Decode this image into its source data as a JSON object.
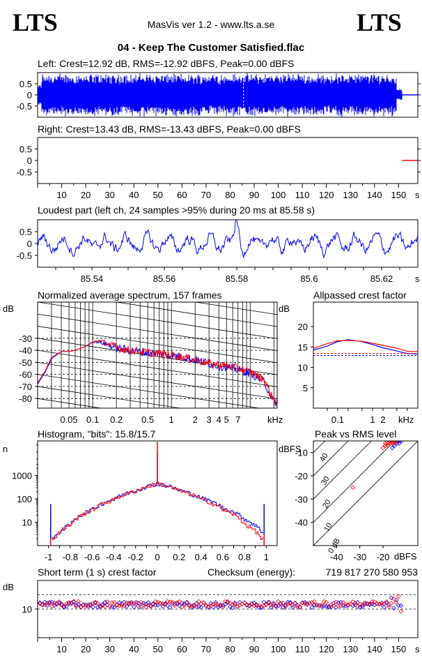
{
  "header": {
    "logo_left": "LTS",
    "logo_right": "LTS",
    "app_title": "MasVis ver 1.2 - www.lts.a.se",
    "file_title": "04 - Keep The Customer Satisfied.flac"
  },
  "colors": {
    "left": "#0000ff",
    "right": "#ff0000",
    "grid": "#000000"
  },
  "chart_data": [
    {
      "id": "left_waveform",
      "type": "area",
      "title": "Left: Crest=12.92 dB, RMS=-12.92 dBFS, Peak=0.00 dBFS",
      "ylim": [
        -1,
        1
      ],
      "yticks": [
        "0.5",
        "0",
        "-0.5"
      ],
      "xlim": [
        0,
        158
      ],
      "duration_s": 151.5,
      "loudest_marker_s": 85.58,
      "envelope_peak": 1.0
    },
    {
      "id": "right_waveform",
      "type": "area",
      "title": "Right: Crest=13.43 dB, RMS=-13.43 dBFS, Peak=0.00 dBFS",
      "ylim": [
        -1,
        1
      ],
      "yticks": [
        "0.5",
        "0",
        "-0.5"
      ],
      "xlim": [
        0,
        158
      ],
      "duration_s": 151.5,
      "xticks": [
        "10",
        "20",
        "30",
        "40",
        "50",
        "60",
        "70",
        "80",
        "90",
        "100",
        "110",
        "120",
        "130",
        "140",
        "150"
      ],
      "xunit": "s"
    },
    {
      "id": "loudest_part",
      "type": "line",
      "title": "Loudest part (left  ch, 24 samples >95% during 20 ms at 85.58 s)",
      "ylim": [
        -1,
        1
      ],
      "yticks": [
        "0.5",
        "0",
        "-0.5"
      ],
      "xlim": [
        85.525,
        85.63
      ],
      "xticks": [
        "85.54",
        "85.56",
        "85.58",
        "85.6",
        "85.62"
      ],
      "xunit": "s"
    },
    {
      "id": "spectrum",
      "type": "line",
      "title": "Normalized average spectrum, 157 frames",
      "ylabel": "dB",
      "ylim": [
        -88,
        0
      ],
      "yticks": [
        "-30",
        "-40",
        "-50",
        "-60",
        "-70",
        "-80"
      ],
      "xscale": "log",
      "xlim_khz": [
        0.02,
        22
      ],
      "xticks": [
        "0.05",
        "0.1",
        "0.2",
        "0.5",
        "1",
        "2",
        "3",
        "4",
        "5",
        "7"
      ],
      "xunit": "kHz",
      "series": [
        {
          "name": "left",
          "x_khz": [
            0.02,
            0.025,
            0.03,
            0.04,
            0.05,
            0.06,
            0.08,
            0.1,
            0.12,
            0.15,
            0.2,
            0.3,
            0.5,
            0.7,
            1,
            1.5,
            2,
            3,
            4,
            5,
            7,
            10,
            15,
            20
          ],
          "values": [
            -68,
            -58,
            -47,
            -41,
            -41,
            -40,
            -37,
            -33,
            -33,
            -35,
            -38,
            -40,
            -42,
            -43,
            -44,
            -46,
            -48,
            -51,
            -53,
            -54,
            -56,
            -59,
            -66,
            -83
          ]
        },
        {
          "name": "right",
          "x_khz": [
            0.02,
            0.025,
            0.03,
            0.04,
            0.05,
            0.06,
            0.08,
            0.1,
            0.12,
            0.15,
            0.2,
            0.3,
            0.5,
            0.7,
            1,
            1.5,
            2,
            3,
            4,
            5,
            7,
            10,
            15,
            20
          ],
          "values": [
            -67,
            -57,
            -46,
            -41,
            -41,
            -40,
            -37,
            -33,
            -32,
            -34,
            -38,
            -40,
            -42,
            -43,
            -44,
            -46,
            -48,
            -51,
            -52,
            -53,
            -55,
            -58,
            -64,
            -82
          ]
        }
      ]
    },
    {
      "id": "allpassed_crest",
      "type": "line",
      "title": "Allpassed crest factor",
      "ylabel": "dB",
      "ylim": [
        0,
        26
      ],
      "yticks": [
        "20",
        "15",
        "10",
        "5"
      ],
      "xscale": "log",
      "xlim_khz": [
        0.02,
        20
      ],
      "xticks": [
        "0.1",
        "1",
        "2"
      ],
      "xunit": "kHz",
      "series": [
        {
          "name": "left",
          "x_khz": [
            0.02,
            0.05,
            0.1,
            0.2,
            0.5,
            1,
            2,
            5,
            10,
            20
          ],
          "values": [
            14.2,
            15.2,
            16.3,
            16.8,
            16.3,
            15.6,
            14.8,
            14.0,
            13.4,
            13.3
          ],
          "reference": 12.92
        },
        {
          "name": "right",
          "x_khz": [
            0.02,
            0.05,
            0.1,
            0.2,
            0.5,
            1,
            2,
            5,
            10,
            20
          ],
          "values": [
            14.6,
            15.8,
            16.5,
            16.6,
            16.4,
            15.9,
            15.4,
            14.7,
            13.9,
            13.9
          ],
          "reference": 13.43
        }
      ]
    },
    {
      "id": "histogram",
      "type": "line",
      "title": "Histogram, \"bits\": 15.8/15.7",
      "ylabel": "n",
      "yscale": "log",
      "ylim": [
        1,
        30000
      ],
      "yticks": [
        "1000",
        "100",
        "10"
      ],
      "xlim": [
        -1.1,
        1.1
      ],
      "xticks": [
        "-1",
        "-0.8",
        "-0.6",
        "-0.4",
        "-0.2",
        "0",
        "0.2",
        "0.4",
        "0.6",
        "0.8",
        "1"
      ],
      "peak_count_at_zero": 450,
      "series": [
        {
          "name": "left",
          "x": [
            -0.95,
            -0.8,
            -0.6,
            -0.4,
            -0.2,
            0,
            0.2,
            0.4,
            0.6,
            0.8,
            0.95
          ],
          "values": [
            2,
            8,
            35,
            100,
            230,
            450,
            230,
            105,
            40,
            13,
            4
          ]
        },
        {
          "name": "right",
          "x": [
            -0.95,
            -0.8,
            -0.6,
            -0.4,
            -0.2,
            0,
            0.2,
            0.4,
            0.6,
            0.8,
            0.95
          ],
          "values": [
            2,
            8,
            33,
            95,
            220,
            450,
            220,
            95,
            33,
            8,
            2
          ]
        }
      ]
    },
    {
      "id": "peak_vs_rms",
      "type": "scatter",
      "title": "Peak vs RMS level",
      "ylabel": "dBFS",
      "xlabel": "dBFS",
      "xlim": [
        -50,
        -5
      ],
      "ylim": [
        -50,
        -5
      ],
      "xticks": [
        "-40",
        "-30",
        "-20"
      ],
      "yticks": [
        "-10",
        "-20",
        "-30",
        "-40"
      ],
      "diagonal_labels": [
        "40",
        "30",
        "20",
        "10",
        "0 dB"
      ],
      "series": [
        {
          "name": "left",
          "points": [
            [
              -14,
              -6
            ],
            [
              -13,
              -5
            ],
            [
              -15,
              -7
            ],
            [
              -12,
              -5
            ],
            [
              -16,
              -8
            ],
            [
              -13,
              -6
            ]
          ]
        },
        {
          "name": "right",
          "points": [
            [
              -19,
              -7
            ],
            [
              -18,
              -7
            ],
            [
              -17,
              -6
            ],
            [
              -16,
              -6
            ],
            [
              -15,
              -5
            ],
            [
              -14,
              -5
            ],
            [
              -13,
              -4
            ],
            [
              -20,
              -8
            ],
            [
              -18,
              -6
            ],
            [
              -17,
              -5
            ],
            [
              -16,
              -5
            ],
            [
              -14,
              -4
            ],
            [
              -33,
              -25
            ],
            [
              -19,
              -6
            ],
            [
              -15,
              -6
            ]
          ]
        }
      ]
    },
    {
      "id": "short_term_crest",
      "type": "scatter",
      "title": "Short term (1 s) crest factor",
      "checksum_label": "Checksum (energy):",
      "checksum_value": "719 817 270 580 953",
      "ylabel": "dB",
      "ylim": [
        0,
        20
      ],
      "yticks": [
        "10"
      ],
      "dashed_levels": [
        10,
        15
      ],
      "xlim": [
        0,
        158
      ],
      "xticks": [
        "10",
        "20",
        "30",
        "40",
        "50",
        "60",
        "70",
        "80",
        "90",
        "100",
        "110",
        "120",
        "130",
        "140",
        "150"
      ],
      "xunit": "s",
      "series": [
        {
          "name": "left",
          "mean": 11.5,
          "spread": 1.0,
          "n": 151
        },
        {
          "name": "right",
          "mean": 11.7,
          "spread": 1.0,
          "n": 151
        }
      ]
    }
  ]
}
